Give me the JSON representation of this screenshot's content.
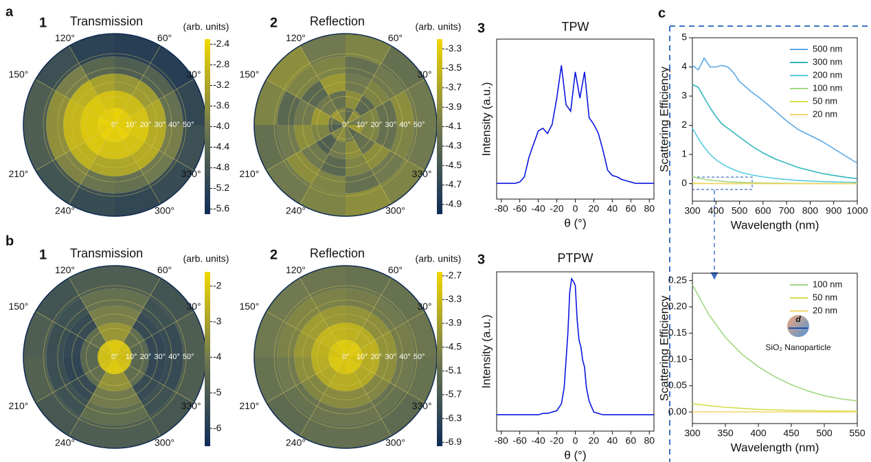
{
  "figure_labels": [
    "a",
    "b",
    "c"
  ],
  "chart_data": [
    {
      "type": "polar-heatmap",
      "panel_label": "1",
      "title": "Transmission",
      "colorbar_label": "(arb. units)",
      "colormap": [
        "#102c57",
        "#70794f",
        "#f2d800"
      ],
      "clim": [
        -5.7,
        -2.3
      ],
      "cticks": [
        -2.4,
        -2.8,
        -3.2,
        -3.6,
        {
          "value": -4,
          "label": "-4.0"
        },
        -4.4,
        -4.8,
        -5.2,
        -5.6
      ],
      "rlim": [
        0,
        64
      ],
      "r_bins": [
        0,
        12,
        24,
        36,
        48,
        64
      ],
      "theta_bins": [
        0,
        30,
        60,
        90,
        120,
        150,
        180,
        210,
        240,
        270,
        300,
        330,
        360
      ],
      "rticks": [
        {
          "value": 0,
          "label": "0°"
        },
        {
          "value": 10,
          "label": "10°"
        },
        {
          "value": 20,
          "label": "20°"
        },
        {
          "value": 30,
          "label": "30°"
        },
        {
          "value": 40,
          "label": "40°"
        },
        {
          "value": 50,
          "label": "50°"
        }
      ],
      "thetaticks": [
        {
          "value": 30,
          "label": "30°"
        },
        {
          "value": 60,
          "label": "60°"
        },
        {
          "value": 120,
          "label": "120°"
        },
        {
          "value": 150,
          "label": "150°"
        },
        {
          "value": 210,
          "label": "210°"
        },
        {
          "value": 240,
          "label": "240°"
        },
        {
          "value": 300,
          "label": "300°"
        },
        {
          "value": 330,
          "label": "330°"
        }
      ],
      "values": [
        [
          -2.5,
          -2.5,
          -2.4,
          -2.5,
          -2.5,
          -2.4,
          -2.5,
          -2.4,
          -2.5,
          -2.5,
          -2.4,
          -2.5
        ],
        [
          -2.7,
          -2.8,
          -2.8,
          -2.7,
          -2.6,
          -2.6,
          -2.6,
          -2.6,
          -2.7,
          -2.7,
          -2.7,
          -2.6
        ],
        [
          -3.2,
          -3.4,
          -3.5,
          -3.3,
          -3.0,
          -2.9,
          -2.9,
          -3.0,
          -3.2,
          -3.2,
          -3.1,
          -3.1
        ],
        [
          -4.2,
          -4.5,
          -4.6,
          -4.4,
          -3.9,
          -3.6,
          -3.6,
          -3.8,
          -4.1,
          -4.2,
          -4.0,
          -3.9
        ],
        [
          -5.1,
          -5.3,
          -5.3,
          -5.2,
          -4.9,
          -4.6,
          -4.6,
          -4.8,
          -5.0,
          -5.1,
          -5.0,
          -4.9
        ]
      ]
    },
    {
      "type": "polar-heatmap",
      "panel_label": "2",
      "title": "Reflection",
      "colorbar_label": "(arb. units)",
      "colormap": [
        "#102c57",
        "#70794f",
        "#f2d800"
      ],
      "clim": [
        -5.0,
        -3.2
      ],
      "cticks": [
        -3.3,
        -3.5,
        -3.7,
        -3.9,
        -4.1,
        -4.3,
        -4.5,
        -4.7,
        -4.9
      ],
      "rlim": [
        0,
        64
      ],
      "r_bins": [
        0,
        12,
        24,
        36,
        48,
        64
      ],
      "theta_bins": [
        0,
        30,
        60,
        90,
        120,
        150,
        180,
        210,
        240,
        270,
        300,
        330,
        360
      ],
      "rticks": [
        {
          "value": 0,
          "label": "0°"
        },
        {
          "value": 10,
          "label": "10°"
        },
        {
          "value": 20,
          "label": "20°"
        },
        {
          "value": 30,
          "label": "30°"
        },
        {
          "value": 40,
          "label": "40°"
        },
        {
          "value": 50,
          "label": "50°"
        }
      ],
      "thetaticks": [
        {
          "value": 30,
          "label": "30°"
        },
        {
          "value": 60,
          "label": "60°"
        },
        {
          "value": 120,
          "label": "120°"
        },
        {
          "value": 150,
          "label": "150°"
        },
        {
          "value": 210,
          "label": "210°"
        },
        {
          "value": 240,
          "label": "240°"
        },
        {
          "value": 300,
          "label": "300°"
        },
        {
          "value": 330,
          "label": "330°"
        }
      ],
      "values": [
        [
          -4.1,
          -3.9,
          -4.3,
          -4.0,
          -3.8,
          -4.2,
          -4.4,
          -4.0,
          -3.9,
          -4.1,
          -4.3,
          -3.8
        ],
        [
          -4.0,
          -4.3,
          -3.9,
          -4.2,
          -4.1,
          -3.8,
          -4.0,
          -4.4,
          -4.1,
          -3.9,
          -4.2,
          -4.0
        ],
        [
          -4.2,
          -4.0,
          -4.1,
          -3.8,
          -4.3,
          -4.1,
          -3.9,
          -4.1,
          -4.3,
          -4.0,
          -3.9,
          -4.2
        ],
        [
          -3.9,
          -4.1,
          -4.2,
          -4.0,
          -4.0,
          -4.3,
          -4.1,
          -3.9,
          -4.0,
          -4.2,
          -4.1,
          -4.0
        ],
        [
          -4.1,
          -4.2,
          -4.0,
          -4.1,
          -3.9,
          -4.0,
          -4.2,
          -4.1,
          -4.0,
          -3.9,
          -4.0,
          -4.1
        ]
      ]
    },
    {
      "type": "line",
      "panel_label": "3",
      "title": "TPW",
      "xlabel": "θ (°)",
      "ylabel": "Intensity (a.u.)",
      "color": "#0a14e0",
      "xlim": [
        -85,
        85
      ],
      "xticks": [
        -80,
        -60,
        -40,
        -20,
        0,
        20,
        40,
        60,
        80
      ],
      "ylim": [
        -0.12,
        1.1
      ],
      "x": [
        -85,
        -80,
        -75,
        -70,
        -65,
        -60,
        -55,
        -50,
        -45,
        -40,
        -35,
        -30,
        -25,
        -20,
        -15,
        -10,
        -5,
        0,
        5,
        10,
        15,
        20,
        25,
        30,
        35,
        40,
        45,
        50,
        55,
        60,
        65,
        70,
        75,
        80,
        85
      ],
      "values": [
        0,
        0,
        0,
        0,
        0,
        0.01,
        0.05,
        0.2,
        0.3,
        0.4,
        0.42,
        0.38,
        0.45,
        0.65,
        0.9,
        0.6,
        0.55,
        0.85,
        0.65,
        0.85,
        0.5,
        0.45,
        0.38,
        0.25,
        0.1,
        0.06,
        0.05,
        0.03,
        0.02,
        0.01,
        0,
        0,
        0,
        0,
        0
      ]
    },
    {
      "type": "polar-heatmap",
      "panel_label": "1",
      "title": "Transmission",
      "colorbar_label": "(arb. units)",
      "colormap": [
        "#102c57",
        "#70794f",
        "#f2d800"
      ],
      "clim": [
        -6.5,
        -1.6
      ],
      "cticks": [
        -2,
        -3,
        -4,
        -5,
        -6
      ],
      "rlim": [
        0,
        64
      ],
      "r_bins": [
        0,
        12,
        24,
        36,
        48,
        64
      ],
      "theta_bins": [
        0,
        30,
        60,
        90,
        120,
        150,
        180,
        210,
        240,
        270,
        300,
        330,
        360
      ],
      "rticks": [
        {
          "value": 0,
          "label": "0°"
        },
        {
          "value": 10,
          "label": "10°"
        },
        {
          "value": 20,
          "label": "20°"
        },
        {
          "value": 30,
          "label": "30°"
        },
        {
          "value": 40,
          "label": "40°"
        },
        {
          "value": 50,
          "label": "50°"
        }
      ],
      "thetaticks": [
        {
          "value": 30,
          "label": "30°"
        },
        {
          "value": 60,
          "label": "60°"
        },
        {
          "value": 120,
          "label": "120°"
        },
        {
          "value": 150,
          "label": "150°"
        },
        {
          "value": 210,
          "label": "210°"
        },
        {
          "value": 240,
          "label": "240°"
        },
        {
          "value": 300,
          "label": "300°"
        },
        {
          "value": 330,
          "label": "330°"
        }
      ],
      "values": [
        [
          -2.3,
          -2.2,
          -2.0,
          -2.0,
          -2.2,
          -2.3,
          -2.3,
          -2.2,
          -2.0,
          -2.0,
          -2.2,
          -2.3
        ],
        [
          -4.6,
          -4.4,
          -3.3,
          -3.3,
          -4.4,
          -4.6,
          -4.6,
          -4.4,
          -3.4,
          -3.4,
          -4.4,
          -4.6
        ],
        [
          -5.6,
          -5.5,
          -3.9,
          -3.9,
          -5.5,
          -5.6,
          -5.7,
          -5.5,
          -4.0,
          -4.0,
          -5.5,
          -5.6
        ],
        [
          -5.5,
          -5.3,
          -4.3,
          -4.3,
          -5.3,
          -5.4,
          -5.4,
          -5.3,
          -4.4,
          -4.4,
          -5.3,
          -5.5
        ],
        [
          -4.9,
          -5.2,
          -4.9,
          -4.9,
          -5.2,
          -4.9,
          -4.8,
          -5.1,
          -4.9,
          -4.9,
          -5.1,
          -4.9
        ]
      ]
    },
    {
      "type": "polar-heatmap",
      "panel_label": "2",
      "title": "Reflection",
      "colorbar_label": "(arb. units)",
      "colormap": [
        "#102c57",
        "#70794f",
        "#f2d800"
      ],
      "clim": [
        -7.0,
        -2.6
      ],
      "cticks": [
        -2.7,
        -3.3,
        -3.9,
        -4.5,
        -5.1,
        -5.7,
        -6.3,
        -6.9
      ],
      "rlim": [
        0,
        64
      ],
      "r_bins": [
        0,
        12,
        24,
        36,
        48,
        64
      ],
      "theta_bins": [
        0,
        30,
        60,
        90,
        120,
        150,
        180,
        210,
        240,
        270,
        300,
        330,
        360
      ],
      "rticks": [
        {
          "value": 0,
          "label": "0°"
        },
        {
          "value": 10,
          "label": "10°"
        },
        {
          "value": 20,
          "label": "20°"
        },
        {
          "value": 30,
          "label": "30°"
        },
        {
          "value": 40,
          "label": "40°"
        },
        {
          "value": 50,
          "label": "50°"
        }
      ],
      "thetaticks": [
        {
          "value": 30,
          "label": "30°"
        },
        {
          "value": 60,
          "label": "60°"
        },
        {
          "value": 120,
          "label": "120°"
        },
        {
          "value": 150,
          "label": "150°"
        },
        {
          "value": 210,
          "label": "210°"
        },
        {
          "value": 240,
          "label": "240°"
        },
        {
          "value": 300,
          "label": "300°"
        },
        {
          "value": 330,
          "label": "330°"
        }
      ],
      "values": [
        [
          -3.0,
          -2.9,
          -3.0,
          -2.9,
          -3.0,
          -3.1,
          -3.0,
          -3.0,
          -3.1,
          -3.0,
          -3.0,
          -3.1
        ],
        [
          -3.5,
          -3.6,
          -3.5,
          -3.4,
          -3.4,
          -3.5,
          -3.6,
          -3.7,
          -3.6,
          -3.6,
          -3.7,
          -3.6
        ],
        [
          -4.2,
          -4.3,
          -4.2,
          -4.1,
          -4.0,
          -4.1,
          -4.3,
          -4.5,
          -4.4,
          -4.4,
          -4.5,
          -4.3
        ],
        [
          -4.7,
          -4.8,
          -4.7,
          -4.6,
          -4.5,
          -4.6,
          -4.8,
          -5.0,
          -4.9,
          -4.9,
          -5.0,
          -4.8
        ],
        [
          -4.9,
          -5.0,
          -5.0,
          -4.9,
          -4.8,
          -4.8,
          -5.0,
          -5.2,
          -5.1,
          -5.1,
          -5.2,
          -5.0
        ]
      ]
    },
    {
      "type": "line",
      "panel_label": "3",
      "title": "PTPW",
      "xlabel": "θ (°)",
      "ylabel": "Intensity (a.u.)",
      "color": "#0a14e0",
      "xlim": [
        -85,
        85
      ],
      "xticks": [
        -80,
        -60,
        -40,
        -20,
        0,
        20,
        40,
        60,
        80
      ],
      "ylim": [
        -0.12,
        1.05
      ],
      "x": [
        -85,
        -80,
        -75,
        -70,
        -65,
        -60,
        -55,
        -50,
        -45,
        -40,
        -35,
        -30,
        -25,
        -20,
        -15,
        -12,
        -10,
        -8,
        -6,
        -4,
        -2,
        0,
        2,
        4,
        6,
        8,
        10,
        12,
        15,
        20,
        25,
        30,
        35,
        40,
        45,
        50,
        55,
        60,
        65,
        70,
        75,
        80,
        85
      ],
      "values": [
        0,
        0,
        0,
        0,
        0,
        0,
        0,
        0,
        0,
        0,
        0.01,
        0.01,
        0.02,
        0.03,
        0.08,
        0.2,
        0.4,
        0.6,
        0.9,
        1.0,
        0.98,
        0.95,
        0.7,
        0.55,
        0.5,
        0.4,
        0.35,
        0.2,
        0.1,
        0.02,
        0.01,
        0,
        0,
        0,
        0,
        0,
        0,
        0,
        0,
        0,
        0,
        0,
        0
      ]
    },
    {
      "type": "line",
      "xlabel": "Wavelength (nm)",
      "ylabel": "Scattering Efficiency",
      "legend": "upper right",
      "xlim": [
        300,
        1000
      ],
      "xticks": [
        300,
        400,
        500,
        600,
        700,
        800,
        900,
        1000
      ],
      "ylim": [
        -0.6,
        5
      ],
      "yticks": [
        0,
        1,
        2,
        3,
        4,
        5
      ],
      "x": [
        300,
        325,
        350,
        375,
        400,
        425,
        450,
        475,
        500,
        550,
        600,
        650,
        700,
        750,
        800,
        850,
        900,
        950,
        1000
      ],
      "series": [
        {
          "name": "500 nm",
          "color": "#5aa8e6",
          "values": [
            4.05,
            3.9,
            4.3,
            4.0,
            4.0,
            4.05,
            4.0,
            3.8,
            3.5,
            3.15,
            2.85,
            2.5,
            2.15,
            1.85,
            1.65,
            1.45,
            1.2,
            0.95,
            0.7
          ]
        },
        {
          "name": "300 nm",
          "color": "#2fb5bc",
          "values": [
            3.4,
            3.3,
            2.95,
            2.6,
            2.3,
            2.05,
            1.9,
            1.75,
            1.6,
            1.3,
            1.05,
            0.85,
            0.7,
            0.55,
            0.45,
            0.35,
            0.28,
            0.22,
            0.17
          ]
        },
        {
          "name": "200 nm",
          "color": "#56cbe0",
          "values": [
            1.9,
            1.55,
            1.25,
            1.0,
            0.82,
            0.68,
            0.57,
            0.48,
            0.4,
            0.3,
            0.23,
            0.18,
            0.14,
            0.11,
            0.09,
            0.07,
            0.06,
            0.05,
            0.04
          ]
        },
        {
          "name": "100 nm",
          "color": "#9fd77f",
          "values": [
            0.24,
            0.19,
            0.15,
            0.12,
            0.1,
            0.08,
            0.065,
            0.055,
            0.045,
            0.03,
            0.022,
            0.016,
            0.012,
            0.009,
            0.007,
            0.005,
            0.004,
            0.003,
            0.003
          ]
        },
        {
          "name": "50 nm",
          "color": "#d6e04a",
          "values": [
            0.016,
            0.012,
            0.009,
            0.007,
            0.005,
            0.004,
            0.003,
            0.0025,
            0.002,
            0.0013,
            0.0009,
            0.0006,
            0.0005,
            0.0004,
            0.0003,
            0.0002,
            0.0002,
            0.0001,
            0.0001
          ]
        },
        {
          "name": "20 nm",
          "color": "#f3d36b",
          "values": [
            0.0004,
            0.0003,
            0.0002,
            0.00015,
            0.0001,
            8e-05,
            6e-05,
            5e-05,
            4e-05,
            3e-05,
            2e-05,
            1e-05,
            1e-05,
            1e-05,
            1e-05,
            1e-05,
            1e-05,
            1e-05,
            1e-05
          ]
        }
      ]
    },
    {
      "type": "line",
      "xlabel": "Wavelength (nm)",
      "ylabel": "Scattering Efficiency",
      "legend": "upper right",
      "illustration_label": "d",
      "annotation": "SiO₂ Nanoparticle",
      "xlim": [
        300,
        550
      ],
      "xticks": [
        300,
        350,
        400,
        450,
        500,
        550
      ],
      "ylim": [
        -0.022,
        0.264
      ],
      "yticks": [
        {
          "value": 0,
          "label": "0.00"
        },
        {
          "value": 0.05,
          "label": "0.05"
        },
        {
          "value": 0.1,
          "label": "0.10"
        },
        {
          "value": 0.15,
          "label": "0.15"
        },
        {
          "value": 0.2,
          "label": "0.20"
        },
        {
          "value": 0.25,
          "label": "0.25"
        }
      ],
      "x": [
        300,
        325,
        350,
        375,
        400,
        425,
        450,
        475,
        500,
        525,
        550
      ],
      "series": [
        {
          "name": "100 nm",
          "color": "#9fd77f",
          "values": [
            0.242,
            0.185,
            0.142,
            0.11,
            0.086,
            0.067,
            0.052,
            0.04,
            0.031,
            0.025,
            0.021
          ]
        },
        {
          "name": "50 nm",
          "color": "#d4de4a",
          "values": [
            0.016,
            0.012,
            0.009,
            0.007,
            0.005,
            0.004,
            0.003,
            0.0025,
            0.002,
            0.0016,
            0.0013
          ]
        },
        {
          "name": "20 nm",
          "color": "#f5d66e",
          "values": [
            0.0004,
            0.0003,
            0.0002,
            0.00015,
            0.0001,
            8e-05,
            6e-05,
            5e-05,
            4e-05,
            3e-05,
            3e-05
          ]
        }
      ]
    }
  ]
}
